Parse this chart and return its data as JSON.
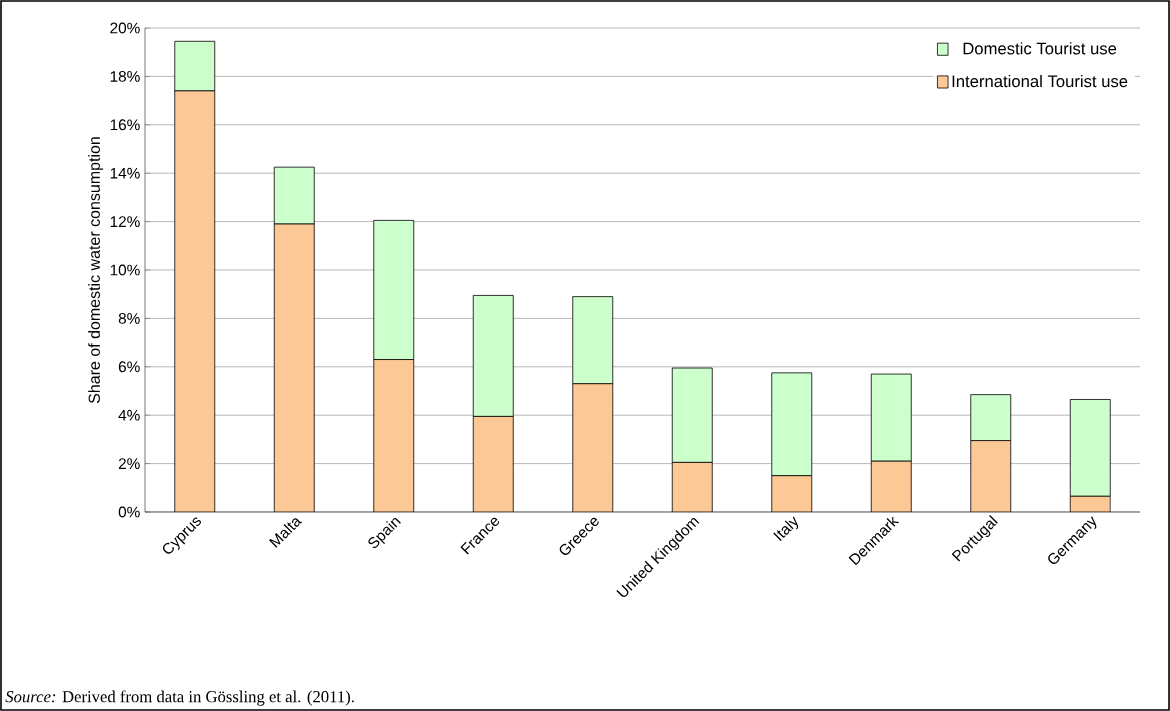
{
  "chart_data": {
    "type": "bar",
    "stacked": true,
    "ylabel": "Share of domestic water consumption",
    "categories": [
      "Cyprus",
      "Malta",
      "Spain",
      "France",
      "Greece",
      "United Kingdom",
      "Italy",
      "Denmark",
      "Portugal",
      "Germany"
    ],
    "series": [
      {
        "name": "International Tourist use",
        "color": "#fcc896",
        "values": [
          17.4,
          11.9,
          6.3,
          3.95,
          5.3,
          2.05,
          1.5,
          2.1,
          2.95,
          0.65
        ]
      },
      {
        "name": "Domestic Tourist use",
        "color": "#ccffcc",
        "values": [
          2.05,
          2.35,
          5.75,
          5.0,
          3.6,
          3.9,
          4.25,
          3.6,
          1.9,
          4.0
        ]
      }
    ],
    "ylim": [
      0,
      20
    ],
    "yticks": [
      {
        "value": 0,
        "label": "0%"
      },
      {
        "value": 2,
        "label": "2%"
      },
      {
        "value": 4,
        "label": "4%"
      },
      {
        "value": 6,
        "label": "6%"
      },
      {
        "value": 8,
        "label": "8%"
      },
      {
        "value": 10,
        "label": "10%"
      },
      {
        "value": 12,
        "label": "12%"
      },
      {
        "value": 14,
        "label": "14%"
      },
      {
        "value": 16,
        "label": "16%"
      },
      {
        "value": 18,
        "label": "18%"
      },
      {
        "value": 20,
        "label": "20%"
      }
    ],
    "grid": "y",
    "legend": "top right",
    "annotations": [
      "*Source:* Derived from data in Gössling et al. (2011)."
    ]
  }
}
